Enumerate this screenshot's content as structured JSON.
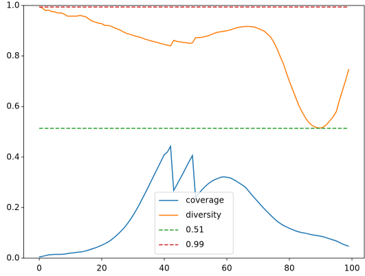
{
  "chart_data": {
    "type": "line",
    "x": [
      0,
      1,
      2,
      3,
      4,
      5,
      6,
      7,
      8,
      9,
      10,
      11,
      12,
      13,
      14,
      15,
      16,
      17,
      18,
      19,
      20,
      21,
      22,
      23,
      24,
      25,
      26,
      27,
      28,
      29,
      30,
      31,
      32,
      33,
      34,
      35,
      36,
      37,
      38,
      39,
      40,
      41,
      42,
      43,
      44,
      45,
      46,
      47,
      48,
      49,
      50,
      51,
      52,
      53,
      54,
      55,
      56,
      57,
      58,
      59,
      60,
      61,
      62,
      63,
      64,
      65,
      66,
      67,
      68,
      69,
      70,
      71,
      72,
      73,
      74,
      75,
      76,
      77,
      78,
      79,
      80,
      81,
      82,
      83,
      84,
      85,
      86,
      87,
      88,
      89,
      90,
      91,
      92,
      93,
      94,
      95,
      96,
      97,
      98,
      99
    ],
    "series": [
      {
        "name": "coverage",
        "color": "#1f77b4",
        "dashed": false,
        "values": [
          0.005,
          0.007,
          0.01,
          0.013,
          0.014,
          0.015,
          0.015,
          0.015,
          0.016,
          0.018,
          0.02,
          0.021,
          0.023,
          0.024,
          0.026,
          0.029,
          0.033,
          0.037,
          0.041,
          0.046,
          0.051,
          0.057,
          0.064,
          0.072,
          0.082,
          0.093,
          0.105,
          0.118,
          0.133,
          0.15,
          0.169,
          0.19,
          0.212,
          0.236,
          0.26,
          0.285,
          0.31,
          0.335,
          0.36,
          0.385,
          0.41,
          0.42,
          0.443,
          0.268,
          0.29,
          0.313,
          0.336,
          0.36,
          0.384,
          0.406,
          0.24,
          0.255,
          0.27,
          0.283,
          0.294,
          0.303,
          0.31,
          0.315,
          0.32,
          0.322,
          0.32,
          0.318,
          0.312,
          0.305,
          0.297,
          0.289,
          0.28,
          0.265,
          0.25,
          0.236,
          0.222,
          0.208,
          0.195,
          0.182,
          0.17,
          0.158,
          0.147,
          0.138,
          0.13,
          0.124,
          0.118,
          0.113,
          0.108,
          0.104,
          0.101,
          0.099,
          0.096,
          0.093,
          0.091,
          0.089,
          0.087,
          0.084,
          0.08,
          0.076,
          0.072,
          0.068,
          0.062,
          0.056,
          0.051,
          0.047
        ]
      },
      {
        "name": "diversity",
        "color": "#ff7f0e",
        "dashed": false,
        "values": [
          0.995,
          0.99,
          0.98,
          0.982,
          0.976,
          0.975,
          0.97,
          0.971,
          0.966,
          0.958,
          0.958,
          0.958,
          0.958,
          0.961,
          0.958,
          0.955,
          0.945,
          0.938,
          0.934,
          0.93,
          0.928,
          0.921,
          0.921,
          0.918,
          0.912,
          0.907,
          0.902,
          0.895,
          0.889,
          0.886,
          0.882,
          0.878,
          0.875,
          0.871,
          0.866,
          0.863,
          0.859,
          0.856,
          0.853,
          0.849,
          0.846,
          0.843,
          0.84,
          0.862,
          0.858,
          0.856,
          0.854,
          0.853,
          0.85,
          0.852,
          0.873,
          0.873,
          0.874,
          0.877,
          0.88,
          0.885,
          0.89,
          0.894,
          0.896,
          0.898,
          0.9,
          0.903,
          0.907,
          0.911,
          0.914,
          0.916,
          0.917,
          0.917,
          0.916,
          0.914,
          0.909,
          0.904,
          0.898,
          0.887,
          0.875,
          0.855,
          0.83,
          0.8,
          0.772,
          0.735,
          0.7,
          0.668,
          0.636,
          0.605,
          0.58,
          0.558,
          0.54,
          0.528,
          0.52,
          0.516,
          0.515,
          0.52,
          0.53,
          0.545,
          0.56,
          0.58,
          0.625,
          0.665,
          0.705,
          0.748
        ]
      },
      {
        "name": "0.51",
        "color": "#2ca02c",
        "dashed": true,
        "x": [
          0,
          99
        ],
        "values": [
          0.514,
          0.514
        ]
      },
      {
        "name": "0.99",
        "color": "#d62728",
        "dashed": true,
        "x": [
          0,
          99
        ],
        "values": [
          0.994,
          0.994
        ]
      }
    ],
    "xlim": [
      -4.95,
      103.95
    ],
    "xticks": [
      0,
      20,
      40,
      60,
      80,
      100
    ],
    "ylim": [
      0,
      1
    ],
    "yticks": [
      {
        "value": 0,
        "label": "0.0"
      },
      0.2,
      0.4,
      0.6,
      0.8,
      {
        "value": 1,
        "label": "1.0"
      }
    ],
    "legend": "lower center",
    "grid": false
  }
}
